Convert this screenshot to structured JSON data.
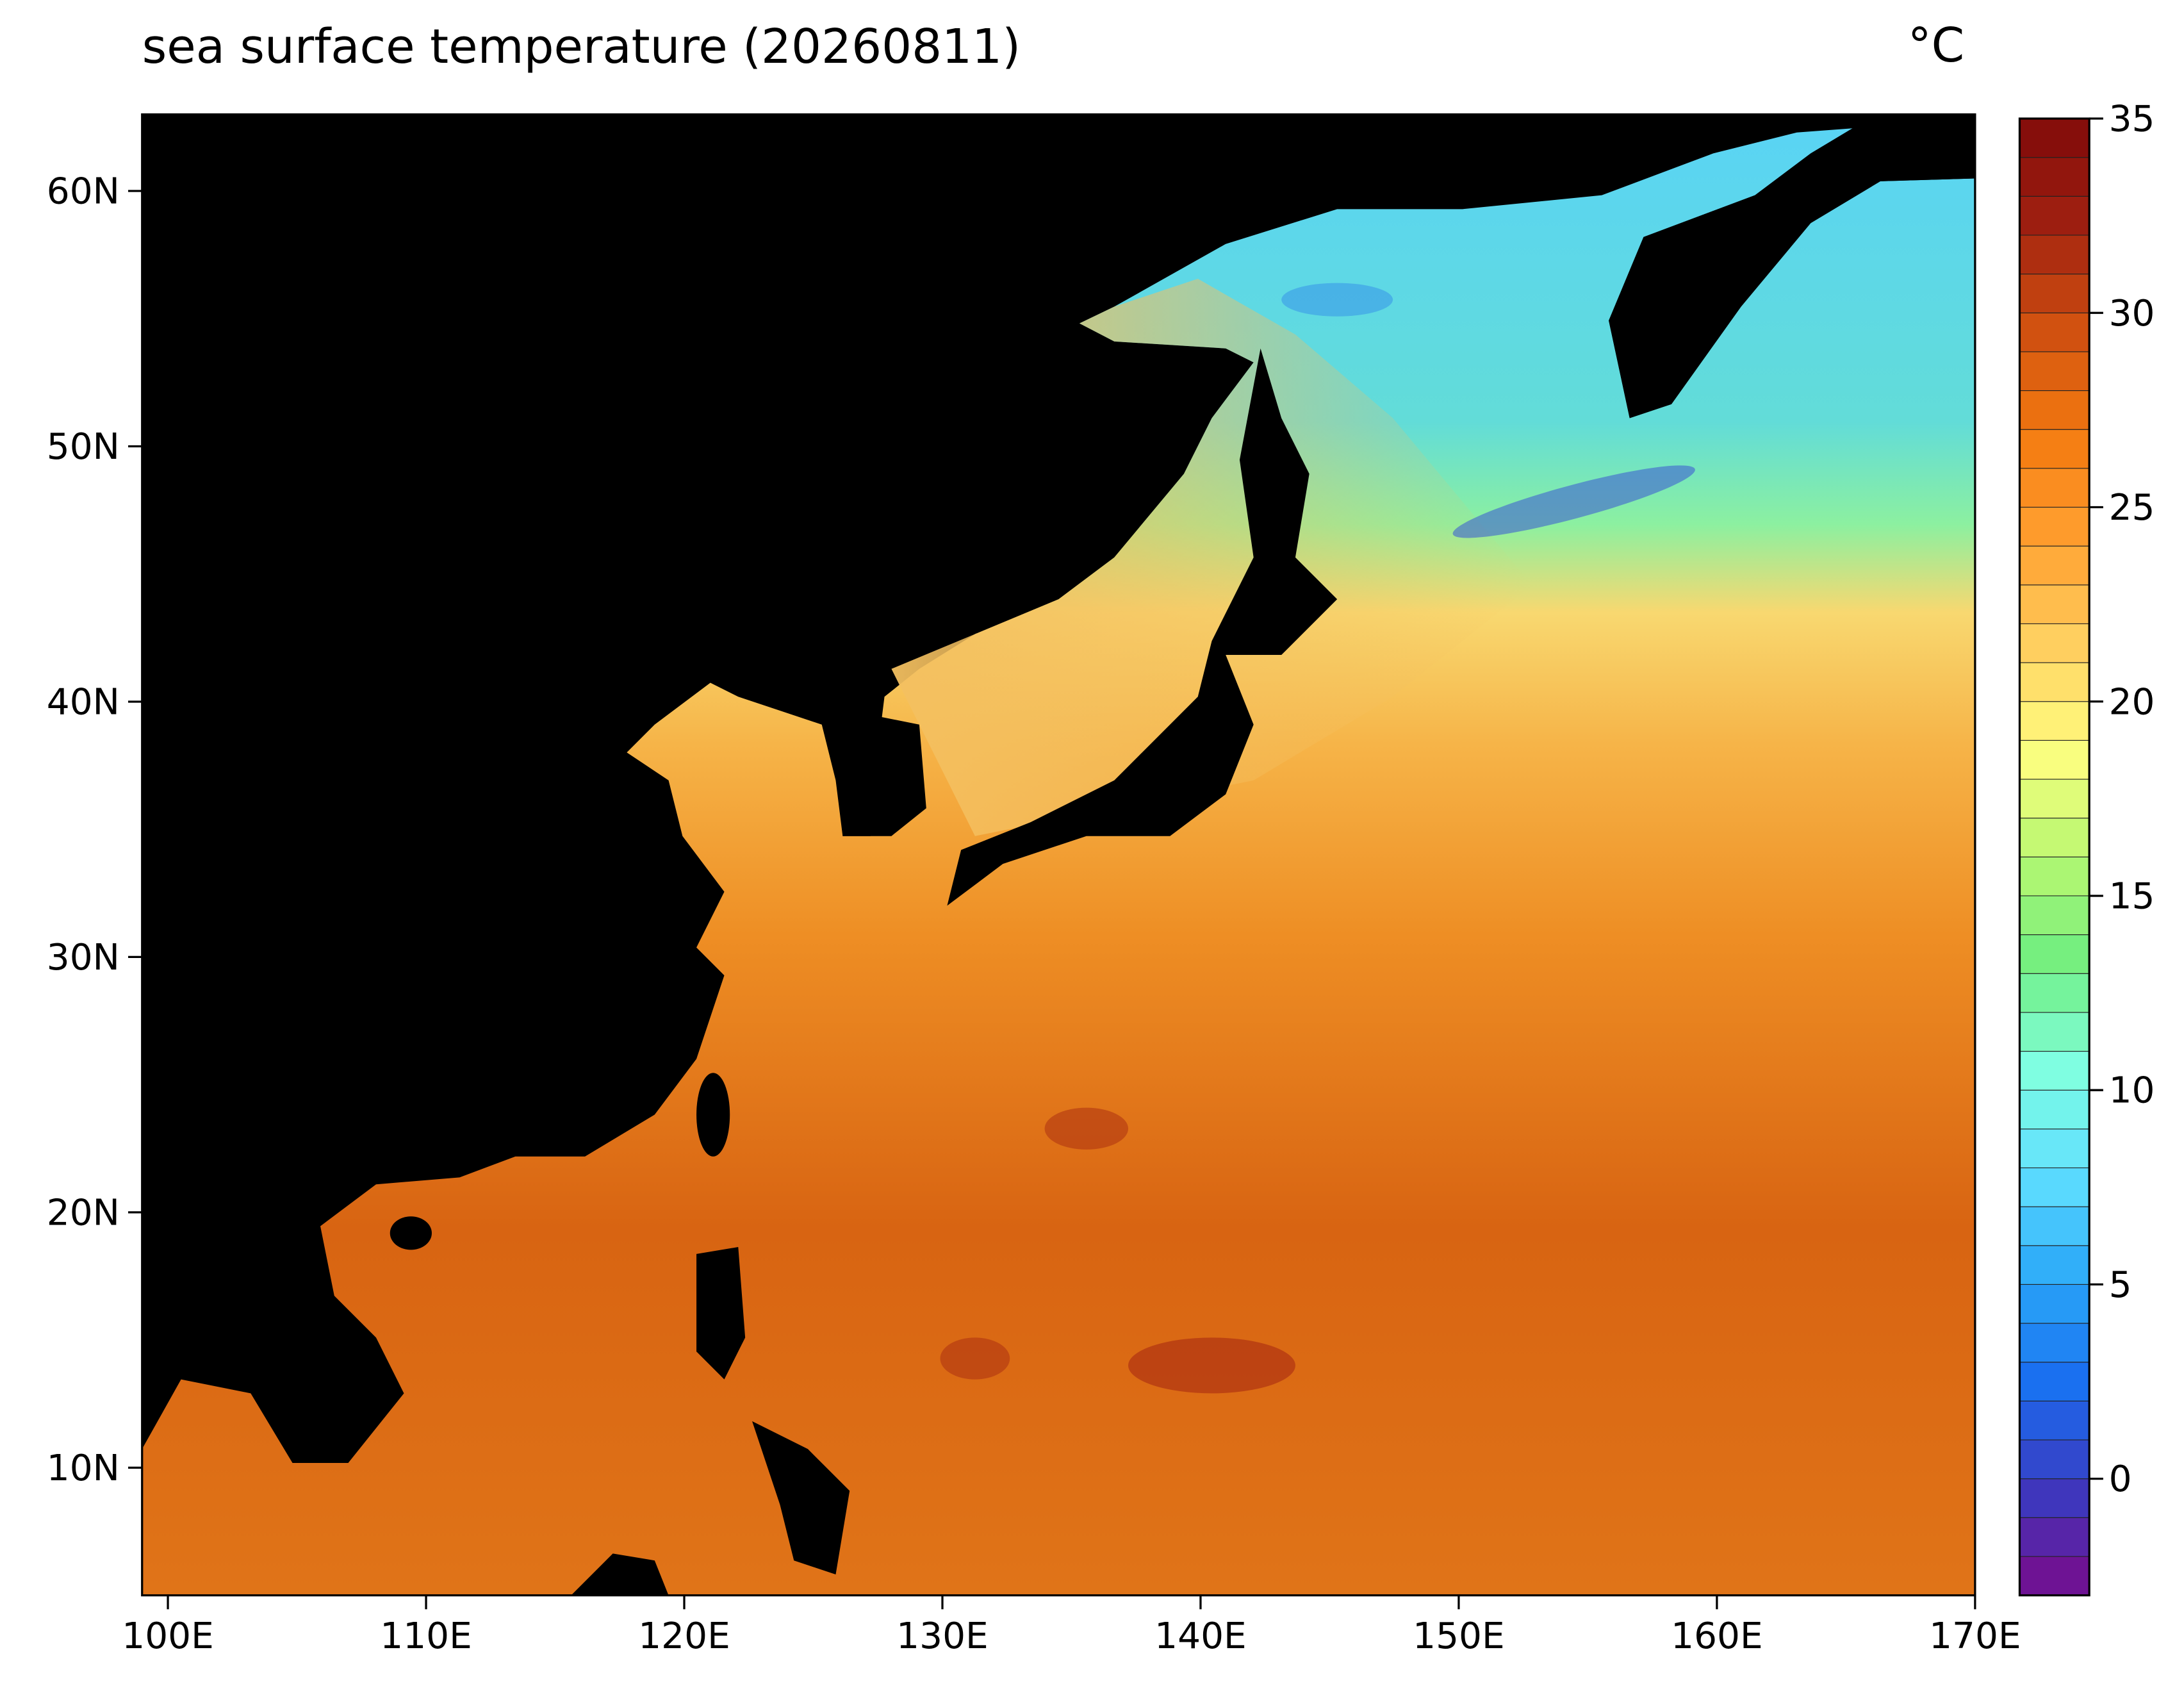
{
  "chart_data": {
    "type": "map",
    "title": "sea surface temperature (20260811)",
    "xlim": [
      99,
      170
    ],
    "ylim": [
      5,
      63
    ],
    "xticks": [
      {
        "value": 100,
        "label": "100E"
      },
      {
        "value": 110,
        "label": "110E"
      },
      {
        "value": 120,
        "label": "120E"
      },
      {
        "value": 130,
        "label": "130E"
      },
      {
        "value": 140,
        "label": "140E"
      },
      {
        "value": 150,
        "label": "150E"
      },
      {
        "value": 160,
        "label": "160E"
      },
      {
        "value": 170,
        "label": "170E"
      }
    ],
    "yticks": [
      {
        "value": 10,
        "label": "10N"
      },
      {
        "value": 20,
        "label": "20N"
      },
      {
        "value": 30,
        "label": "30N"
      },
      {
        "value": 40,
        "label": "40N"
      },
      {
        "value": 50,
        "label": "50N"
      },
      {
        "value": 60,
        "label": "60N"
      }
    ],
    "colorbar": {
      "label": "°C",
      "lim": [
        -3,
        35
      ],
      "ticks": [
        0,
        5,
        10,
        15,
        20,
        25,
        30,
        35
      ],
      "colors": [
        "#7a0a8a",
        "#3a3ac0",
        "#1a6ef0",
        "#2aa8f8",
        "#60e0ff",
        "#80ffe0",
        "#70ee80",
        "#b8f870",
        "#ffff80",
        "#ffd060",
        "#ffa030",
        "#f47a10",
        "#d05010",
        "#a02010",
        "#800a0a"
      ]
    }
  }
}
